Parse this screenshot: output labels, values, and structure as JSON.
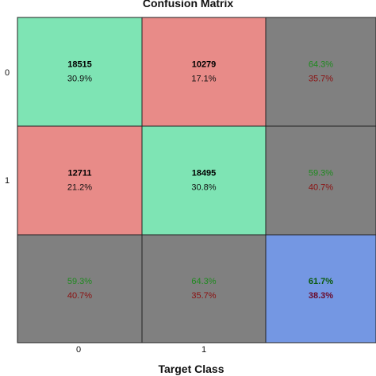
{
  "chart_data": {
    "type": "heatmap",
    "title": "Confusion Matrix",
    "xlabel": "Target Class",
    "ylabel": "",
    "row_labels": [
      "0",
      "1"
    ],
    "col_labels": [
      "0",
      "1"
    ],
    "matrix": [
      [
        {
          "count": "18515",
          "percent": "30.9%"
        },
        {
          "count": "10279",
          "percent": "17.1%"
        }
      ],
      [
        {
          "count": "12711",
          "percent": "21.2%"
        },
        {
          "count": "18495",
          "percent": "30.8%"
        }
      ]
    ],
    "row_summary": [
      {
        "correct": "64.3%",
        "wrong": "35.7%"
      },
      {
        "correct": "59.3%",
        "wrong": "40.7%"
      }
    ],
    "col_summary": [
      {
        "correct": "59.3%",
        "wrong": "40.7%"
      },
      {
        "correct": "64.3%",
        "wrong": "35.7%"
      }
    ],
    "overall": {
      "correct": "61.7%",
      "wrong": "38.3%"
    },
    "colors": {
      "correct_cell": "#7ee4b4",
      "wrong_cell": "#e88b88",
      "summary_cell": "#808080",
      "overall_cell": "#7497e3",
      "correct_text": "#1e8a1e",
      "wrong_text": "#8b1010",
      "overall_correct_text": "#0a5a0a",
      "overall_wrong_text": "#6a0a2a"
    }
  }
}
